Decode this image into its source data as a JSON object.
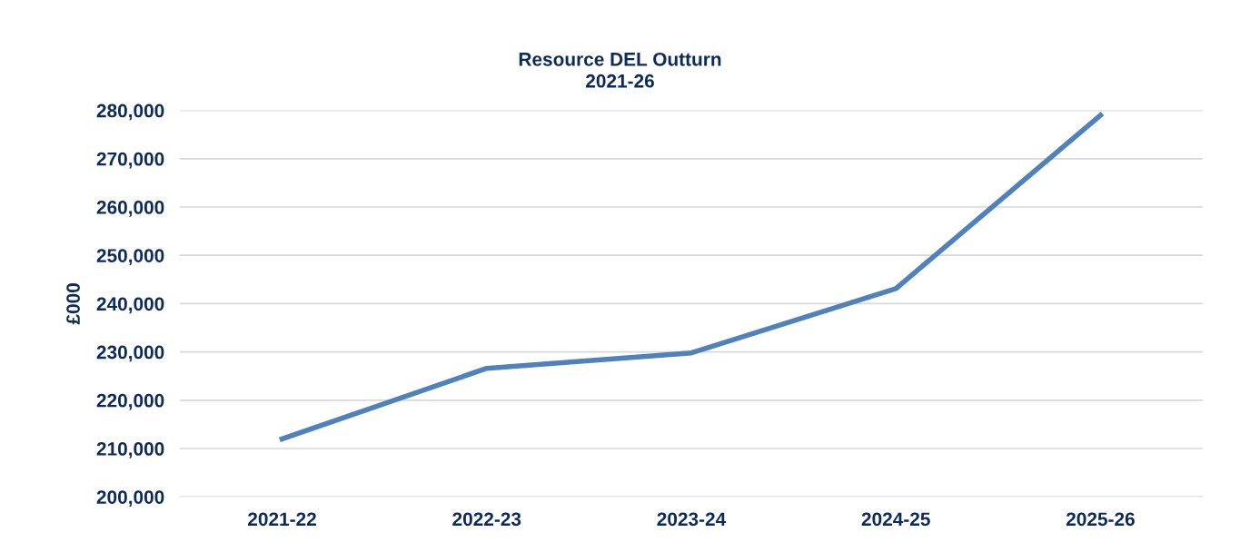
{
  "chart_data": {
    "type": "line",
    "title": "Resource DEL Outturn\n2021-26",
    "ylabel": "£000",
    "categories": [
      "2021-22",
      "2022-23",
      "2023-24",
      "2024-25",
      "2025-26"
    ],
    "series": [
      {
        "color": "#4f81bd",
        "values": [
          212000,
          226600,
          229800,
          243100,
          279000
        ]
      }
    ],
    "ylim": [
      200000,
      280000
    ],
    "yticks": [
      {
        "value": 200000,
        "label": "200,000"
      },
      {
        "value": 210000,
        "label": "210,000"
      },
      {
        "value": 220000,
        "label": "220,000"
      },
      {
        "value": 230000,
        "label": "230,000"
      },
      {
        "value": 240000,
        "label": "240,000"
      },
      {
        "value": 250000,
        "label": "250,000"
      },
      {
        "value": 260000,
        "label": "260,000"
      },
      {
        "value": 270000,
        "label": "270,000"
      },
      {
        "value": 280000,
        "label": "280,000"
      }
    ],
    "grid": "y",
    "marker": "none",
    "line_style": "solid"
  }
}
